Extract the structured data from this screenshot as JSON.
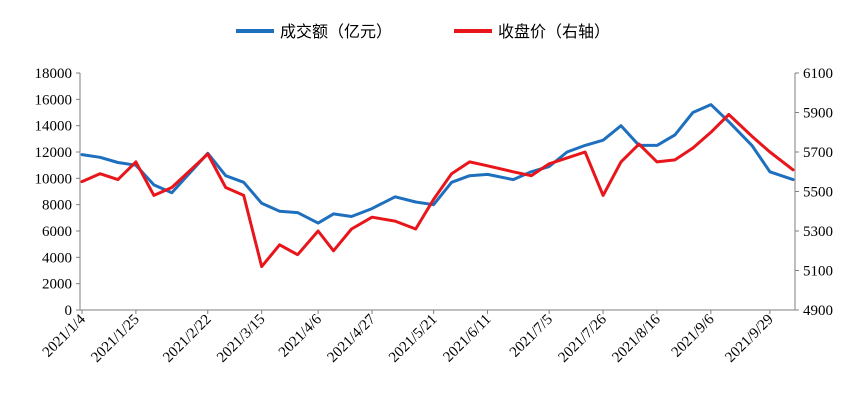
{
  "chart_data": {
    "type": "line",
    "title": "",
    "xlabel": "",
    "ylabel": "",
    "x_tick_labels": [
      "2021/1/4",
      "2021/1/25",
      "2021/2/22",
      "2021/3/15",
      "2021/4/6",
      "2021/4/27",
      "2021/5/21",
      "2021/6/11",
      "2021/7/5",
      "2021/7/26",
      "2021/8/16",
      "2021/9/6",
      "2021/9/29"
    ],
    "y_left": {
      "min": 0,
      "max": 18000,
      "ticks": [
        "0",
        "2000",
        "4000",
        "6000",
        "8000",
        "10000",
        "12000",
        "14000",
        "16000",
        "18000"
      ]
    },
    "y_right": {
      "min": 4900,
      "max": 6100,
      "ticks": [
        "4900",
        "5100",
        "5300",
        "5500",
        "5700",
        "5900",
        "6100"
      ]
    },
    "legend_position": "top-center",
    "grid": false,
    "series": [
      {
        "name": "成交额（亿元）",
        "axis": "left",
        "color": "#1f6fbf",
        "x": [
          "2021/1/4",
          "2021/1/11",
          "2021/1/18",
          "2021/1/25",
          "2021/2/1",
          "2021/2/8",
          "2021/2/22",
          "2021/3/1",
          "2021/3/8",
          "2021/3/15",
          "2021/3/22",
          "2021/3/29",
          "2021/4/6",
          "2021/4/12",
          "2021/4/19",
          "2021/4/27",
          "2021/5/6",
          "2021/5/14",
          "2021/5/21",
          "2021/5/28",
          "2021/6/4",
          "2021/6/11",
          "2021/6/21",
          "2021/6/28",
          "2021/7/5",
          "2021/7/12",
          "2021/7/19",
          "2021/7/26",
          "2021/8/2",
          "2021/8/9",
          "2021/8/16",
          "2021/8/23",
          "2021/8/30",
          "2021/9/6",
          "2021/9/13",
          "2021/9/22",
          "2021/9/29",
          "2021/10/8"
        ],
        "values": [
          11800,
          11600,
          11200,
          11000,
          9500,
          8900,
          11900,
          10200,
          9700,
          8100,
          7500,
          7400,
          6600,
          7300,
          7100,
          7700,
          8600,
          8200,
          8000,
          9700,
          10200,
          10300,
          9900,
          10500,
          10900,
          12000,
          12500,
          12900,
          14000,
          12500,
          12500,
          13300,
          15000,
          15600,
          14300,
          12500,
          10500,
          9900
        ]
      },
      {
        "name": "收盘价（右轴）",
        "axis": "right",
        "color": "#e8161b",
        "x": [
          "2021/1/4",
          "2021/1/11",
          "2021/1/18",
          "2021/1/25",
          "2021/2/1",
          "2021/2/8",
          "2021/2/22",
          "2021/3/1",
          "2021/3/8",
          "2021/3/15",
          "2021/3/22",
          "2021/3/29",
          "2021/4/6",
          "2021/4/12",
          "2021/4/19",
          "2021/4/27",
          "2021/5/6",
          "2021/5/14",
          "2021/5/21",
          "2021/5/28",
          "2021/6/4",
          "2021/6/11",
          "2021/6/21",
          "2021/6/28",
          "2021/7/5",
          "2021/7/12",
          "2021/7/19",
          "2021/7/26",
          "2021/8/2",
          "2021/8/9",
          "2021/8/16",
          "2021/8/23",
          "2021/8/30",
          "2021/9/6",
          "2021/9/13",
          "2021/9/22",
          "2021/9/29",
          "2021/10/8"
        ],
        "values": [
          5550,
          5590,
          5560,
          5650,
          5480,
          5520,
          5690,
          5520,
          5480,
          5120,
          5230,
          5180,
          5300,
          5200,
          5310,
          5370,
          5350,
          5310,
          5460,
          5590,
          5650,
          5630,
          5600,
          5580,
          5640,
          5670,
          5700,
          5480,
          5650,
          5740,
          5650,
          5660,
          5720,
          5800,
          5890,
          5780,
          5700,
          5610
        ]
      }
    ]
  }
}
